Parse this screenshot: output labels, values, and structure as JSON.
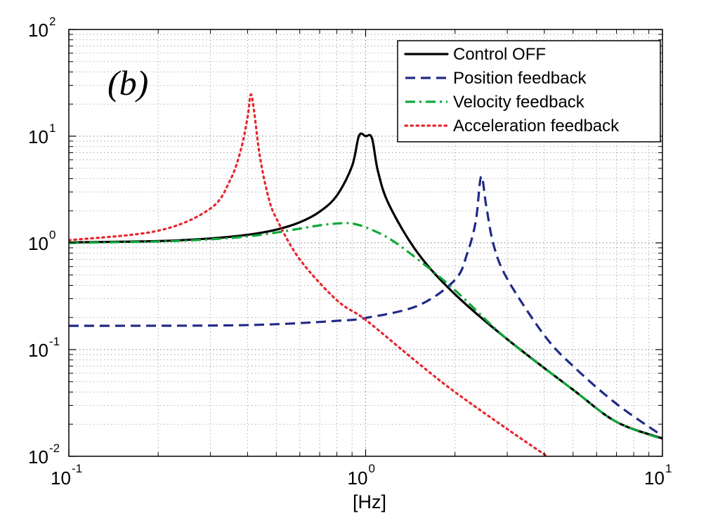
{
  "chart_data": {
    "type": "line",
    "panel_label": "(b)",
    "xlabel": "[Hz]",
    "ylabel": "",
    "xscale": "log",
    "yscale": "log",
    "xlim": [
      0.1,
      10
    ],
    "ylim": [
      0.01,
      100
    ],
    "grid": true,
    "legend_position": "top-right",
    "x_ticks": [
      {
        "base": "10",
        "exp": "-1",
        "value": 0.1
      },
      {
        "base": "10",
        "exp": "0",
        "value": 1
      },
      {
        "base": "10",
        "exp": "1",
        "value": 10
      }
    ],
    "y_ticks": [
      {
        "base": "10",
        "exp": "-2",
        "value": 0.01
      },
      {
        "base": "10",
        "exp": "-1",
        "value": 0.1
      },
      {
        "base": "10",
        "exp": "0",
        "value": 1
      },
      {
        "base": "10",
        "exp": "1",
        "value": 10
      },
      {
        "base": "10",
        "exp": "2",
        "value": 100
      }
    ],
    "series": [
      {
        "name": "Control OFF",
        "color": "#000000",
        "dash": "solid",
        "x": [
          0.1,
          0.2,
          0.3,
          0.4,
          0.5,
          0.6,
          0.7,
          0.8,
          0.9,
          0.95,
          1.0,
          1.05,
          1.1,
          1.2,
          1.5,
          2.0,
          3.0,
          5.0,
          7.0,
          10.0
        ],
        "y": [
          1.01,
          1.04,
          1.1,
          1.19,
          1.33,
          1.56,
          1.96,
          2.78,
          5.25,
          10.1,
          10.0,
          9.6,
          4.7,
          2.27,
          0.8,
          0.33,
          0.125,
          0.042,
          0.021,
          0.0147
        ]
      },
      {
        "name": "Position feedback",
        "color": "#1f2a87",
        "dash": "dashed",
        "x": [
          0.1,
          0.3,
          0.5,
          0.8,
          1.0,
          1.5,
          2.0,
          2.2,
          2.35,
          2.45,
          2.55,
          2.7,
          3.0,
          4.0,
          5.0,
          7.0,
          10.0
        ],
        "y": [
          0.167,
          0.168,
          0.173,
          0.186,
          0.198,
          0.258,
          0.45,
          0.8,
          1.6,
          4.2,
          2.2,
          0.95,
          0.46,
          0.136,
          0.07,
          0.031,
          0.0155
        ]
      },
      {
        "name": "Velocity feedback",
        "color": "#10a83a",
        "dash": "dashdot",
        "x": [
          0.1,
          0.2,
          0.3,
          0.4,
          0.5,
          0.6,
          0.7,
          0.8,
          0.85,
          0.9,
          1.0,
          1.2,
          1.5,
          2.0,
          3.0,
          5.0,
          7.0,
          10.0
        ],
        "y": [
          1.0,
          1.03,
          1.08,
          1.15,
          1.25,
          1.36,
          1.46,
          1.52,
          1.53,
          1.52,
          1.4,
          1.1,
          0.7,
          0.36,
          0.125,
          0.042,
          0.021,
          0.0145
        ]
      },
      {
        "name": "Acceleration feedback",
        "color": "#e8262d",
        "dash": "dotted",
        "x": [
          0.1,
          0.2,
          0.3,
          0.35,
          0.38,
          0.4,
          0.41,
          0.42,
          0.44,
          0.47,
          0.5,
          0.6,
          0.8,
          1.0,
          1.5,
          2.0,
          3.0,
          4.2
        ],
        "y": [
          1.06,
          1.3,
          2.1,
          3.9,
          7.5,
          15.0,
          24.5,
          18.0,
          6.5,
          2.7,
          1.7,
          0.7,
          0.29,
          0.19,
          0.075,
          0.04,
          0.018,
          0.0095
        ]
      }
    ]
  }
}
